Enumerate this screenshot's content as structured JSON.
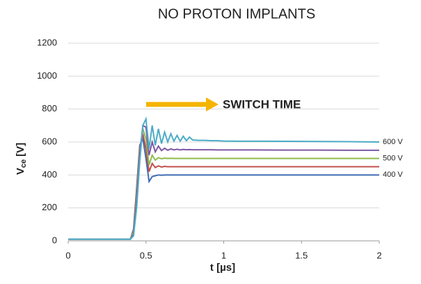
{
  "chart_data": {
    "type": "line",
    "title": "NO PROTON IMPLANTS",
    "x_label": "t [µs]",
    "y_label": [
      "V",
      "ce",
      "[V]"
    ],
    "annotation": "SWITCH TIME",
    "x": [
      0,
      0.4,
      0.42,
      0.44,
      0.46,
      0.48,
      0.5,
      0.52,
      0.54,
      0.56,
      0.58,
      0.6,
      0.62,
      0.64,
      0.66,
      0.68,
      0.7,
      0.72,
      0.74,
      0.76,
      0.78,
      0.8,
      0.84,
      0.88,
      0.92,
      0.96,
      1.0,
      1.1,
      1.2,
      1.4,
      1.6,
      1.8,
      2.0
    ],
    "series": [
      {
        "color": "#3f6cb3",
        "name": "400 V",
        "values": [
          10,
          10,
          70,
          320,
          580,
          620,
          500,
          360,
          390,
          395,
          400,
          398,
          400,
          400,
          400,
          400,
          400,
          400,
          400,
          400,
          400,
          400,
          400,
          400,
          400,
          400,
          400,
          400,
          400,
          400,
          400,
          400,
          400
        ]
      },
      {
        "color": "#c0504d",
        "values": [
          10,
          10,
          60,
          300,
          560,
          650,
          560,
          420,
          470,
          445,
          455,
          448,
          452,
          450,
          450,
          450,
          450,
          450,
          450,
          450,
          450,
          450,
          450,
          450,
          450,
          450,
          450,
          450,
          450,
          450,
          450,
          450,
          450
        ]
      },
      {
        "color": "#8fbc4f",
        "name": "500 V",
        "values": [
          10,
          10,
          50,
          280,
          540,
          680,
          620,
          460,
          520,
          490,
          505,
          498,
          502,
          500,
          501,
          500,
          500,
          500,
          500,
          500,
          500,
          500,
          500,
          500,
          500,
          500,
          500,
          500,
          500,
          500,
          500,
          500,
          500
        ]
      },
      {
        "color": "#7e57a6",
        "values": [
          10,
          10,
          40,
          250,
          520,
          700,
          690,
          520,
          600,
          540,
          575,
          548,
          562,
          550,
          558,
          552,
          556,
          552,
          555,
          553,
          554,
          553,
          553,
          553,
          553,
          552,
          552,
          552,
          552,
          551,
          551,
          550,
          550
        ]
      },
      {
        "color": "#4bacc6",
        "name": "600 V",
        "values": [
          10,
          10,
          30,
          200,
          480,
          700,
          740,
          560,
          700,
          580,
          680,
          590,
          660,
          600,
          650,
          605,
          640,
          605,
          635,
          608,
          630,
          612,
          610,
          610,
          608,
          608,
          606,
          605,
          605,
          604,
          603,
          602,
          600
        ]
      }
    ],
    "xlim": [
      0,
      2
    ],
    "xticks": [
      0,
      0.5,
      1,
      1.5,
      2
    ],
    "ylim": [
      0,
      1200
    ],
    "yticks": [
      0,
      200,
      400,
      600,
      800,
      1000,
      1200
    ],
    "grid": true
  }
}
